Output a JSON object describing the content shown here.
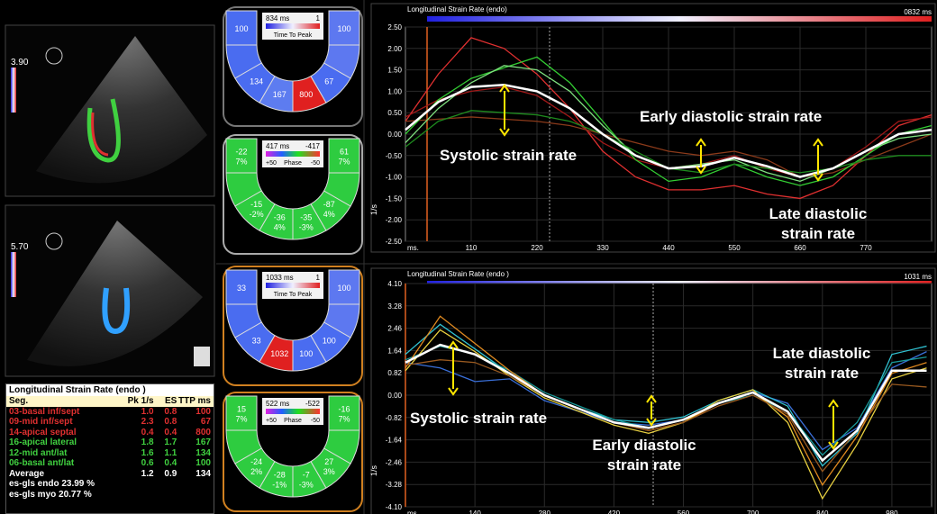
{
  "left_panel": {
    "image_top_depth": "3.90",
    "image_bottom_depth": "5.70"
  },
  "table": {
    "title": "Longitudinal Strain Rate (endo )",
    "header": [
      "Seg.",
      "Pk 1/s",
      "ES",
      "TTP ms"
    ],
    "rows": [
      {
        "cells": [
          "03-basal inf/sept",
          "1.0",
          "0.8",
          "100"
        ],
        "color": "#e03030"
      },
      {
        "cells": [
          "09-mid inf/sept",
          "2.3",
          "0.8",
          "67"
        ],
        "color": "#e03030"
      },
      {
        "cells": [
          "14-apical septal",
          "0.4",
          "0.4",
          "800"
        ],
        "color": "#e03030"
      },
      {
        "cells": [
          "16-apical lateral",
          "1.8",
          "1.7",
          "167"
        ],
        "color": "#40d040"
      },
      {
        "cells": [
          "12-mid ant/lat",
          "1.6",
          "1.1",
          "134"
        ],
        "color": "#40d040"
      },
      {
        "cells": [
          "06-basal ant/lat",
          "0.6",
          "0.4",
          "100"
        ],
        "color": "#40d040"
      },
      {
        "cells": [
          "Average",
          "1.2",
          "0.9",
          "134"
        ],
        "color": "#ffffff"
      }
    ],
    "footer": [
      "es-gls endo 23.99 %",
      "es-gls myo 20.77 %"
    ]
  },
  "bullseyes": [
    {
      "center_value": "834 ms",
      "center_right": "1",
      "caption": "Time To Peak",
      "segments": [
        {
          "lines": [
            "100"
          ],
          "color": "#4a6cf0"
        },
        {
          "lines": [
            "134"
          ],
          "color": "#4a6cf0"
        },
        {
          "lines": [
            "167"
          ],
          "color": "#5d7cf0"
        },
        {
          "lines": [
            "800"
          ],
          "color": "#e02020"
        },
        {
          "lines": [
            "67"
          ],
          "color": "#4a6cf0"
        },
        {
          "lines": [
            "100"
          ],
          "color": "#5d78f0"
        }
      ]
    },
    {
      "center_value": "417 ms",
      "center_right": "-417",
      "caption_left": "+50",
      "caption": "Phase",
      "caption_right": "-50",
      "segments": [
        {
          "lines": [
            "-22",
            "7%"
          ],
          "color": "#2ecc40"
        },
        {
          "lines": [
            "-15",
            "-2%"
          ],
          "color": "#2ecc40"
        },
        {
          "lines": [
            "-36",
            "4%"
          ],
          "color": "#2ecc40"
        },
        {
          "lines": [
            "-35",
            "-3%"
          ],
          "color": "#2ecc40"
        },
        {
          "lines": [
            "-87",
            "4%"
          ],
          "color": "#2ecc40"
        },
        {
          "lines": [
            "61",
            "7%"
          ],
          "color": "#2ecc40"
        }
      ]
    },
    {
      "center_value": "1033 ms",
      "center_right": "1",
      "caption": "Time To Peak",
      "segments": [
        {
          "lines": [
            "33"
          ],
          "color": "#4a6cf0"
        },
        {
          "lines": [
            "33"
          ],
          "color": "#4a6cf0"
        },
        {
          "lines": [
            "1032"
          ],
          "color": "#e02020"
        },
        {
          "lines": [
            "100"
          ],
          "color": "#4a6cf0"
        },
        {
          "lines": [
            "100"
          ],
          "color": "#4a6cf0"
        },
        {
          "lines": [
            "100"
          ],
          "color": "#5d78f0"
        }
      ]
    },
    {
      "center_value": "522 ms",
      "center_right": "-522",
      "caption_left": "+50",
      "caption": "Phase",
      "caption_right": "-50",
      "segments": [
        {
          "lines": [
            "15",
            "7%"
          ],
          "color": "#2ecc40"
        },
        {
          "lines": [
            "-24",
            "2%"
          ],
          "color": "#2ecc40"
        },
        {
          "lines": [
            "-28",
            "-1%"
          ],
          "color": "#2ecc40"
        },
        {
          "lines": [
            "-7",
            "-3%"
          ],
          "color": "#2ecc40"
        },
        {
          "lines": [
            "27",
            "3%"
          ],
          "color": "#2ecc40"
        },
        {
          "lines": [
            "-16",
            "7%"
          ],
          "color": "#2ecc40"
        }
      ]
    }
  ],
  "charts": [
    {
      "type": "line",
      "title": "Longitudinal Strain Rate (endo)",
      "end_label": "0832 ms",
      "y_label": "1/s",
      "x_unit": "ms.",
      "xlim": [
        0,
        880
      ],
      "ylim": [
        -2.5,
        2.5
      ],
      "xticks": [
        110,
        220,
        330,
        440,
        550,
        660,
        770
      ],
      "yticks": [
        {
          "value": 2.5,
          "label": "2.50"
        },
        {
          "value": 2.0,
          "label": "2.00"
        },
        {
          "value": 1.5,
          "label": "1.50"
        },
        {
          "value": 1.0,
          "label": "1.00"
        },
        {
          "value": 0.5,
          "label": "0.50"
        },
        {
          "value": 0,
          "label": "0.00"
        },
        {
          "value": -0.5,
          "label": "-0.50"
        },
        {
          "value": -1.0,
          "label": "-1.00"
        },
        {
          "value": -1.5,
          "label": "-1.50"
        },
        {
          "value": -2.0,
          "label": "-2.00"
        },
        {
          "value": -2.5,
          "label": "-2.50"
        }
      ],
      "x": [
        0,
        55,
        110,
        165,
        220,
        275,
        330,
        385,
        440,
        495,
        550,
        605,
        660,
        715,
        770,
        825,
        880
      ],
      "series": [
        {
          "color": "#e03030",
          "values": [
            0.3,
            1.4,
            2.25,
            2.0,
            1.4,
            0.6,
            -0.4,
            -1.0,
            -1.3,
            -1.3,
            -1.2,
            -1.4,
            -1.5,
            -1.2,
            -0.5,
            0.2,
            0.45
          ]
        },
        {
          "color": "#a01818",
          "values": [
            0.4,
            0.8,
            1.0,
            1.1,
            0.9,
            0.4,
            -0.2,
            -0.6,
            -0.8,
            -0.7,
            -0.5,
            -0.8,
            -1.0,
            -0.8,
            -0.3,
            0.3,
            0.4
          ]
        },
        {
          "color": "#8b3a1a",
          "values": [
            0.3,
            0.35,
            0.4,
            0.35,
            0.3,
            0.2,
            0.0,
            -0.2,
            -0.4,
            -0.5,
            -0.4,
            -0.6,
            -1.0,
            -0.9,
            -0.6,
            -0.3,
            0.0
          ]
        },
        {
          "color": "#33cc33",
          "values": [
            0.0,
            0.8,
            1.3,
            1.55,
            1.8,
            1.2,
            0.3,
            -0.6,
            -1.1,
            -1.0,
            -0.7,
            -1.0,
            -1.2,
            -1.0,
            -0.5,
            0.0,
            0.2
          ]
        },
        {
          "color": "#7fe07f",
          "values": [
            -0.2,
            0.6,
            1.2,
            1.6,
            1.5,
            1.0,
            0.2,
            -0.5,
            -0.8,
            -0.7,
            -0.6,
            -0.9,
            -1.1,
            -0.8,
            -0.4,
            -0.1,
            0.0
          ]
        },
        {
          "color": "#1e8a1e",
          "values": [
            -0.3,
            0.3,
            0.55,
            0.5,
            0.45,
            0.3,
            0.0,
            -0.4,
            -0.8,
            -0.9,
            -0.7,
            -0.8,
            -0.9,
            -0.8,
            -0.6,
            -0.5,
            -0.5
          ]
        },
        {
          "color": "#ffffff",
          "values": [
            0.1,
            0.75,
            1.1,
            1.15,
            1.0,
            0.6,
            0.0,
            -0.5,
            -0.8,
            -0.75,
            -0.55,
            -0.75,
            -1.0,
            -0.8,
            -0.4,
            0.0,
            0.1
          ]
        }
      ],
      "annotations": [
        {
          "lines": [
            "Systolic strain rate"
          ]
        },
        {
          "lines": [
            "Early diastolic strain rate"
          ]
        },
        {
          "lines": [
            "Late diastolic",
            "strain rate"
          ]
        }
      ]
    },
    {
      "type": "line",
      "title": "Longitudinal Strain Rate (endo )",
      "end_label": "1031 ms",
      "y_label": "1/s",
      "x_unit": "ms.",
      "xlim": [
        0,
        1060
      ],
      "ylim": [
        -4.1,
        4.1
      ],
      "xticks": [
        140,
        280,
        420,
        560,
        700,
        840,
        980
      ],
      "yticks": [
        {
          "value": 4.1,
          "label": "4.10"
        },
        {
          "value": 3.28,
          "label": "3.28"
        },
        {
          "value": 2.46,
          "label": "2.46"
        },
        {
          "value": 1.64,
          "label": "1.64"
        },
        {
          "value": 0.82,
          "label": "0.82"
        },
        {
          "value": 0,
          "label": "0.00"
        },
        {
          "value": -0.82,
          "label": "-0.82"
        },
        {
          "value": -1.64,
          "label": "-1.64"
        },
        {
          "value": -2.46,
          "label": "-2.46"
        },
        {
          "value": -3.28,
          "label": "-3.28"
        },
        {
          "value": -4.1,
          "label": "-4.10"
        }
      ],
      "x": [
        0,
        70,
        140,
        210,
        280,
        350,
        420,
        490,
        560,
        630,
        700,
        770,
        840,
        910,
        980,
        1050
      ],
      "series": [
        {
          "color": "#3a6fd8",
          "values": [
            1.2,
            1.0,
            0.5,
            0.6,
            -0.2,
            -0.6,
            -1.0,
            -1.1,
            -0.9,
            -0.3,
            0.1,
            -0.3,
            -2.0,
            -1.2,
            1.0,
            1.6
          ]
        },
        {
          "color": "#30c0d0",
          "values": [
            1.5,
            2.6,
            1.7,
            0.8,
            0.0,
            -0.5,
            -0.9,
            -1.0,
            -0.8,
            -0.2,
            0.2,
            -0.4,
            -2.6,
            -1.4,
            1.5,
            1.8
          ]
        },
        {
          "color": "#1a9a9a",
          "values": [
            1.3,
            1.8,
            1.5,
            0.9,
            0.1,
            -0.4,
            -0.9,
            -1.2,
            -0.9,
            -0.3,
            0.0,
            -0.6,
            -2.2,
            -1.0,
            1.2,
            1.4
          ]
        },
        {
          "color": "#e08a20",
          "values": [
            1.0,
            2.9,
            1.9,
            0.9,
            0.0,
            -0.5,
            -1.0,
            -1.3,
            -1.0,
            -0.3,
            0.1,
            -0.8,
            -3.3,
            -1.5,
            0.8,
            1.2
          ]
        },
        {
          "color": "#e8d040",
          "values": [
            0.9,
            2.4,
            1.6,
            0.7,
            -0.1,
            -0.6,
            -1.1,
            -1.4,
            -1.0,
            -0.2,
            0.2,
            -1.0,
            -3.8,
            -1.8,
            0.6,
            1.0
          ]
        },
        {
          "color": "#9a5a20",
          "values": [
            1.1,
            1.3,
            1.2,
            0.7,
            0.0,
            -0.5,
            -1.0,
            -1.3,
            -1.0,
            -0.4,
            0.0,
            -0.7,
            -2.8,
            -1.3,
            0.4,
            0.3
          ]
        },
        {
          "color": "#ffffff",
          "values": [
            1.2,
            1.85,
            1.5,
            0.8,
            0.0,
            -0.5,
            -1.0,
            -1.2,
            -0.9,
            -0.3,
            0.1,
            -0.6,
            -2.4,
            -1.3,
            0.9,
            0.9
          ]
        }
      ],
      "annotations": [
        {
          "lines": [
            "Systolic strain rate"
          ]
        },
        {
          "lines": [
            "Early diastolic",
            "strain rate"
          ]
        },
        {
          "lines": [
            "Late diastolic",
            "strain rate"
          ]
        }
      ]
    }
  ]
}
